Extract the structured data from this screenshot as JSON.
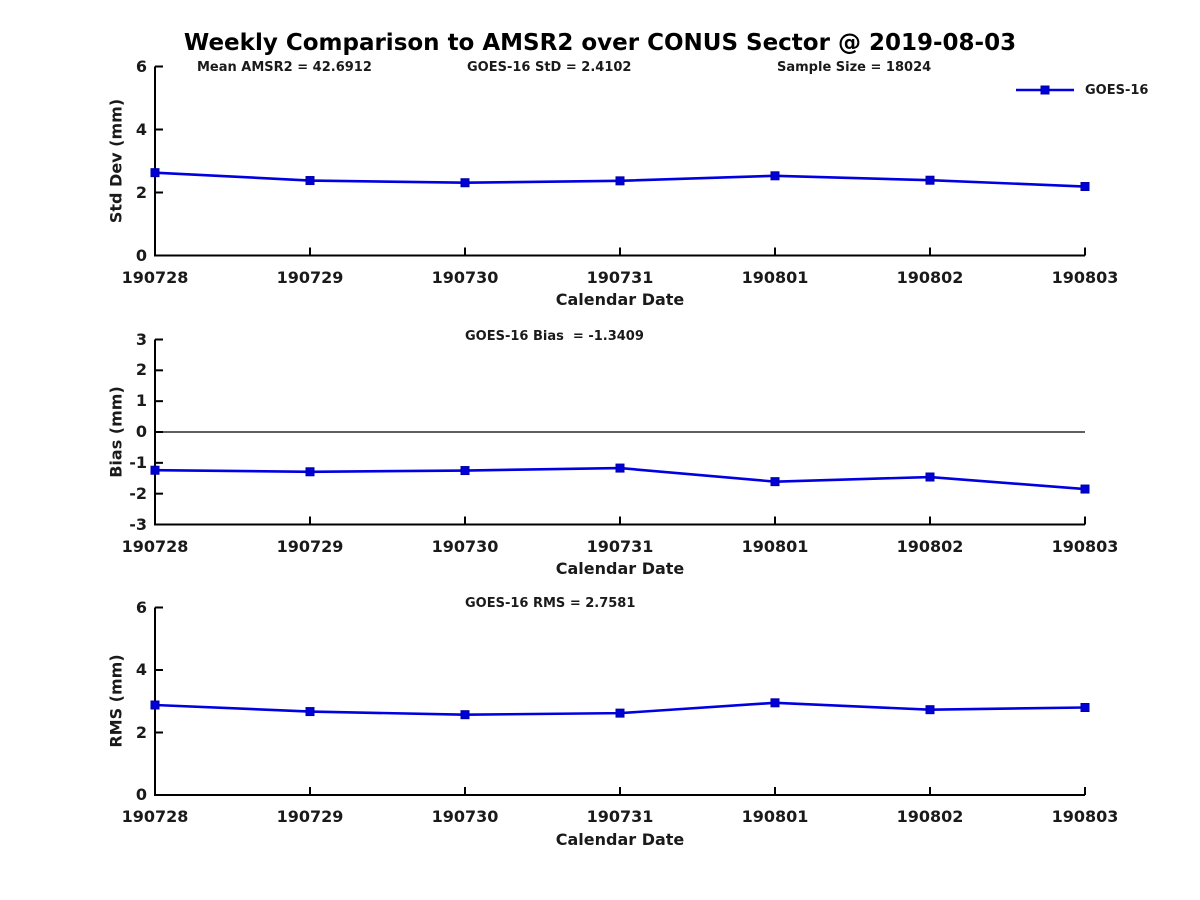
{
  "title": "Weekly Comparison to AMSR2 over CONUS Sector @ 2019-08-03",
  "colors": {
    "line": "#0000e0",
    "marker_fill": "#0000d6",
    "marker_edge": "#0000a8",
    "axis": "#000000",
    "text": "#1a1a1a"
  },
  "legend": {
    "label": "GOES-16"
  },
  "chart_data": [
    {
      "type": "line",
      "name": "std-dev-vs-date",
      "categories": [
        "190728",
        "190729",
        "190730",
        "190731",
        "190801",
        "190802",
        "190803"
      ],
      "xlabel": "Calendar Date",
      "ylabel": "Std Dev (mm)",
      "ylim": [
        0,
        6
      ],
      "yticks": [
        0,
        2,
        4,
        6
      ],
      "grid": false,
      "legend_position": "top-right",
      "annotations": [
        "Mean AMSR2 = 42.6912",
        "GOES-16 StD = 2.4102",
        "Sample Size = 18024"
      ],
      "series": [
        {
          "name": "GOES-16",
          "values": [
            2.63,
            2.38,
            2.31,
            2.37,
            2.53,
            2.39,
            2.19
          ]
        }
      ]
    },
    {
      "type": "line",
      "name": "bias-vs-date",
      "categories": [
        "190728",
        "190729",
        "190730",
        "190731",
        "190801",
        "190802",
        "190803"
      ],
      "xlabel": "Calendar Date",
      "ylabel": "Bias (mm)",
      "ylim": [
        -3,
        3
      ],
      "yticks": [
        3,
        2,
        1,
        0,
        -1,
        -2,
        -3
      ],
      "zero_line": true,
      "grid": false,
      "annotations": [
        "GOES-16 Bias  = -1.3409"
      ],
      "series": [
        {
          "name": "GOES-16",
          "values": [
            -1.24,
            -1.29,
            -1.25,
            -1.17,
            -1.61,
            -1.46,
            -1.85
          ]
        }
      ]
    },
    {
      "type": "line",
      "name": "rms-vs-date",
      "categories": [
        "190728",
        "190729",
        "190730",
        "190731",
        "190801",
        "190802",
        "190803"
      ],
      "xlabel": "Calendar Date",
      "ylabel": "RMS (mm)",
      "ylim": [
        0,
        6
      ],
      "yticks": [
        0,
        2,
        4,
        6
      ],
      "grid": false,
      "annotations": [
        "GOES-16 RMS = 2.7581"
      ],
      "series": [
        {
          "name": "GOES-16",
          "values": [
            2.88,
            2.67,
            2.57,
            2.62,
            2.95,
            2.73,
            2.8
          ]
        }
      ]
    }
  ]
}
